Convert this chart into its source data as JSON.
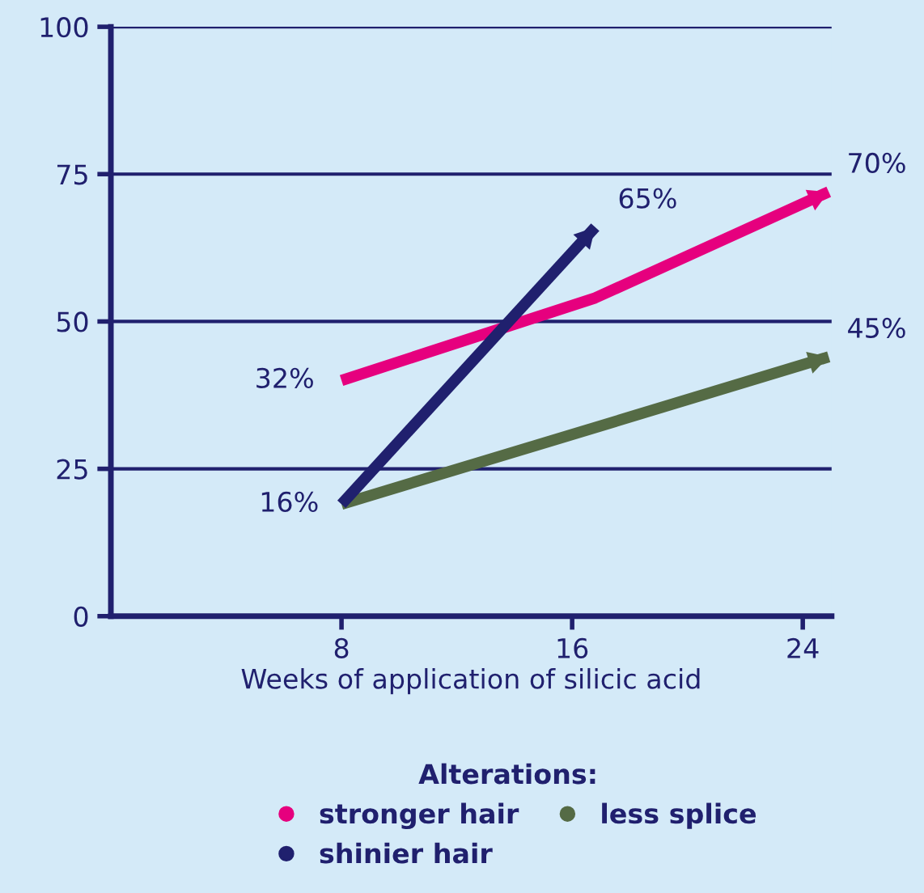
{
  "chart_data": {
    "type": "line",
    "xlabel": "Weeks of application of silicic acid",
    "legend_title": "Alterations:",
    "xlim": [
      0,
      25
    ],
    "xticks": [
      8,
      16,
      24
    ],
    "ylim": [
      0,
      100
    ],
    "yticks": [
      0,
      25,
      50,
      75,
      100
    ],
    "grid": "y",
    "legend": "bottom",
    "marker": "none",
    "line_style": "solid",
    "series": [
      {
        "name": "stronger hair",
        "color": "#e6007e",
        "x": [
          8,
          16.8,
          24.9
        ],
        "values": [
          40,
          54,
          72
        ]
      },
      {
        "name": "less splice",
        "color": "#556b45",
        "x": [
          8,
          24.9
        ],
        "values": [
          19,
          44
        ]
      },
      {
        "name": "shinier hair",
        "color": "#20206e",
        "x": [
          8,
          16.8
        ],
        "values": [
          19,
          66
        ]
      }
    ],
    "annotations": [
      {
        "text": "32%",
        "x": 8,
        "y": 40
      },
      {
        "text": "16%",
        "x": 8,
        "y": 19
      },
      {
        "text": "65%",
        "x": 16.8,
        "y": 66
      },
      {
        "text": "70%",
        "x": 24.9,
        "y": 72
      },
      {
        "text": "45%",
        "x": 24.9,
        "y": 44
      }
    ]
  }
}
